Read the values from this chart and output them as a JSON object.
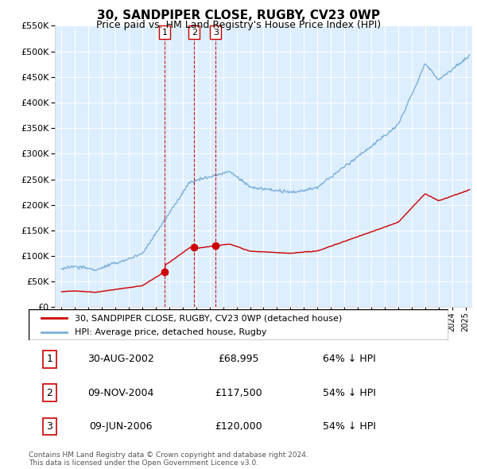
{
  "title": "30, SANDPIPER CLOSE, RUGBY, CV23 0WP",
  "subtitle": "Price paid vs. HM Land Registry's House Price Index (HPI)",
  "ylim": [
    0,
    550000
  ],
  "xlim_start": 1994.5,
  "xlim_end": 2025.5,
  "transactions": [
    {
      "num": 1,
      "date": "30-AUG-2002",
      "price": 68995,
      "year": 2002.66,
      "pct": "64%"
    },
    {
      "num": 2,
      "date": "09-NOV-2004",
      "price": 117500,
      "year": 2004.85,
      "pct": "54%"
    },
    {
      "num": 3,
      "date": "09-JUN-2006",
      "price": 120000,
      "year": 2006.44,
      "pct": "54%"
    }
  ],
  "legend_label_red": "30, SANDPIPER CLOSE, RUGBY, CV23 0WP (detached house)",
  "legend_label_blue": "HPI: Average price, detached house, Rugby",
  "footnote": "Contains HM Land Registry data © Crown copyright and database right 2024.\nThis data is licensed under the Open Government Licence v3.0.",
  "table_rows": [
    [
      "1",
      "30-AUG-2002",
      "£68,995",
      "64% ↓ HPI"
    ],
    [
      "2",
      "09-NOV-2004",
      "£117,500",
      "54% ↓ HPI"
    ],
    [
      "3",
      "09-JUN-2006",
      "£120,000",
      "54% ↓ HPI"
    ]
  ],
  "hpi_blue_color": "#7bb0d8",
  "red_color": "#cc0000",
  "vline_color": "#cc0000",
  "background_chart": "#ddeeff",
  "grid_color": "#ffffff"
}
